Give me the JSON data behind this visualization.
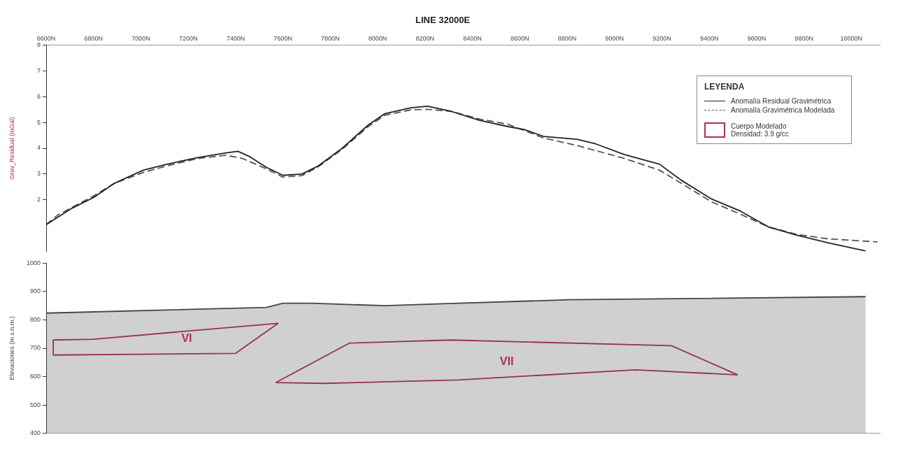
{
  "chart_data": [
    {
      "type": "line",
      "title": "LINE 32000E",
      "ylabel": "Grav_Residual (mGal)",
      "legend_title": "LEYENDA",
      "legend": "top right",
      "grid": false,
      "xlim": [
        6600,
        10120
      ],
      "xticks": [
        {
          "value": 6600,
          "label": "6600N"
        },
        {
          "value": 6800,
          "label": "6800N"
        },
        {
          "value": 7000,
          "label": "7000N"
        },
        {
          "value": 7200,
          "label": "7200N"
        },
        {
          "value": 7400,
          "label": "7400N"
        },
        {
          "value": 7600,
          "label": "7600N"
        },
        {
          "value": 7800,
          "label": "7800N"
        },
        {
          "value": 8000,
          "label": "8000N"
        },
        {
          "value": 8200,
          "label": "8200N"
        },
        {
          "value": 8400,
          "label": "8400N"
        },
        {
          "value": 8600,
          "label": "8600N"
        },
        {
          "value": 8800,
          "label": "8800N"
        },
        {
          "value": 9000,
          "label": "9000N"
        },
        {
          "value": 9200,
          "label": "9200N"
        },
        {
          "value": 9400,
          "label": "9400N"
        },
        {
          "value": 9600,
          "label": "9600N"
        },
        {
          "value": 9800,
          "label": "9800N"
        },
        {
          "value": 10000,
          "label": "10000N"
        }
      ],
      "ylim": [
        0,
        8
      ],
      "yticks": [
        2,
        3,
        4,
        5,
        6,
        7,
        8
      ],
      "series": [
        {
          "name": "Anomalía Residual Gravimétrica",
          "color": "#222222",
          "line_style": "solid",
          "x": [
            6600,
            6710,
            6800,
            6890,
            7010,
            7110,
            7240,
            7360,
            7410,
            7460,
            7530,
            7600,
            7680,
            7750,
            7850,
            7960,
            8030,
            8140,
            8210,
            8310,
            8430,
            8550,
            8620,
            8700,
            8840,
            8920,
            9040,
            9190,
            9280,
            9410,
            9530,
            9650,
            9770,
            9900,
            10060
          ],
          "values": [
            1.04,
            1.68,
            2.09,
            2.65,
            3.15,
            3.38,
            3.64,
            3.82,
            3.88,
            3.67,
            3.26,
            2.95,
            3.0,
            3.32,
            4.0,
            4.9,
            5.34,
            5.57,
            5.63,
            5.43,
            5.08,
            4.84,
            4.72,
            4.46,
            4.35,
            4.17,
            3.76,
            3.38,
            2.77,
            2.03,
            1.57,
            0.95,
            0.63,
            0.34,
            0.02
          ]
        },
        {
          "name": "Anomalía Gravimétrica Modelada",
          "color": "#555555",
          "line_style": "dashed",
          "x": [
            6600,
            6650,
            6800,
            6890,
            7010,
            7110,
            7240,
            7360,
            7430,
            7530,
            7600,
            7680,
            7750,
            7850,
            7960,
            8030,
            8140,
            8210,
            8310,
            8430,
            8550,
            8700,
            8840,
            9040,
            9190,
            9280,
            9410,
            9530,
            9650,
            9770,
            9900,
            10110
          ],
          "values": [
            1.04,
            1.42,
            2.15,
            2.65,
            3.06,
            3.32,
            3.6,
            3.73,
            3.6,
            3.2,
            2.88,
            2.94,
            3.29,
            3.96,
            4.84,
            5.28,
            5.49,
            5.51,
            5.43,
            5.13,
            4.93,
            4.4,
            4.11,
            3.61,
            3.15,
            2.65,
            1.92,
            1.45,
            0.95,
            0.66,
            0.49,
            0.37
          ]
        }
      ]
    },
    {
      "type": "line",
      "ylabel": "Elevaciones (m s.n.m.)",
      "grid": false,
      "tick_labels": "y",
      "xlim": [
        6600,
        10120
      ],
      "ylim": [
        400,
        1000
      ],
      "yticks": [
        400,
        500,
        600,
        700,
        800,
        900,
        1000
      ],
      "series": [
        {
          "type": "area",
          "color": "#444444",
          "x": [
            6600,
            7530,
            7600,
            7720,
            8030,
            8340,
            8810,
            10060
          ],
          "values": [
            824,
            844,
            859,
            859,
            850,
            859,
            871,
            882
          ]
        },
        {
          "name": "Cuerpo Modelado Densidad: 3.9 g/cc",
          "color": "#b0304a",
          "line_style": "solid",
          "x": [
            6630,
            6630,
            6800,
            7580
          ],
          "values": [
            676,
            729,
            732,
            788
          ]
        },
        {
          "color": "#b0304a",
          "line_style": "solid",
          "x": [
            6630,
            7400,
            7580
          ],
          "values": [
            676,
            682,
            788
          ]
        },
        {
          "color": "#b0304a",
          "line_style": "solid",
          "x": [
            7570,
            7880,
            8310,
            9240,
            9520
          ],
          "values": [
            579,
            718,
            729,
            709,
            606
          ]
        },
        {
          "color": "#b0304a",
          "line_style": "solid",
          "x": [
            7570,
            7770,
            8340,
            9090,
            9520
          ],
          "values": [
            579,
            576,
            588,
            624,
            606
          ]
        }
      ],
      "annotations": [
        "VI",
        "VII"
      ]
    }
  ]
}
